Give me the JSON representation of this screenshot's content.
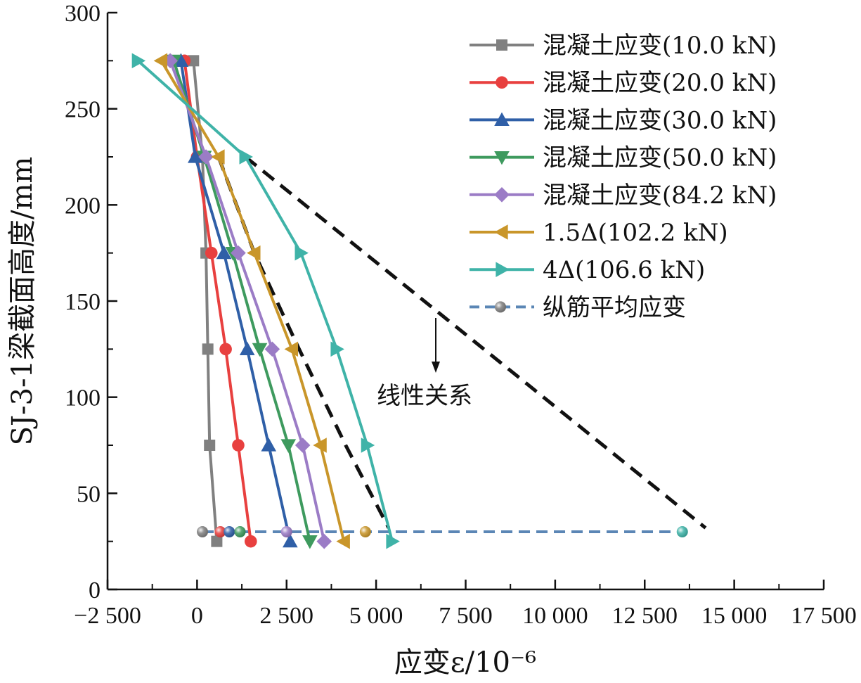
{
  "chart_data": {
    "type": "line",
    "orientation": "strain_x_height_y",
    "xlabel": "应变ε/10⁻⁶",
    "ylabel": "SJ-3-1梁截面高度/mm",
    "xlim": [
      -2500,
      17500
    ],
    "ylim": [
      0,
      300
    ],
    "x_ticks": [
      -2500,
      0,
      2500,
      5000,
      7500,
      10000,
      12500,
      15000,
      17500
    ],
    "x_tick_labels": [
      "−2 500",
      "0",
      "2 500",
      "5 000",
      "7 500",
      "10 000",
      "12 500",
      "15 000",
      "17 500"
    ],
    "y_ticks": [
      0,
      50,
      100,
      150,
      200,
      250,
      300
    ],
    "y_tick_labels": [
      "0",
      "50",
      "100",
      "150",
      "200",
      "250",
      "300"
    ],
    "legend_position": "top-right",
    "series": [
      {
        "name": "混凝土应变(10.0 kN)",
        "color": "#808080",
        "marker": "square",
        "x": [
          -100,
          150,
          250,
          300,
          350,
          550
        ],
        "y": [
          275,
          225,
          175,
          125,
          75,
          25
        ]
      },
      {
        "name": "混凝土应变(20.0 kN)",
        "color": "#e8403f",
        "marker": "circle",
        "x": [
          -350,
          0,
          400,
          800,
          1150,
          1500
        ],
        "y": [
          275,
          225,
          175,
          125,
          75,
          25
        ]
      },
      {
        "name": "混凝土应变(30.0 kN)",
        "color": "#2f5fa7",
        "marker": "triangle-up",
        "x": [
          -450,
          -50,
          750,
          1400,
          2000,
          2600
        ],
        "y": [
          275,
          225,
          175,
          125,
          75,
          25
        ]
      },
      {
        "name": "混凝土应变(50.0 kN)",
        "color": "#3e9a5e",
        "marker": "triangle-down",
        "x": [
          -650,
          200,
          1000,
          1750,
          2550,
          3150
        ],
        "y": [
          275,
          225,
          175,
          125,
          75,
          25
        ]
      },
      {
        "name": "混凝土应变(84.2 kN)",
        "color": "#9b7cc6",
        "marker": "diamond",
        "x": [
          -750,
          250,
          1150,
          2100,
          2950,
          3550
        ],
        "y": [
          275,
          225,
          175,
          125,
          75,
          25
        ]
      },
      {
        "name": "1.5Δ(102.2 kN)",
        "color": "#c9962a",
        "marker": "triangle-left",
        "x": [
          -1000,
          600,
          1600,
          2650,
          3450,
          4100
        ],
        "y": [
          275,
          225,
          175,
          125,
          75,
          25
        ]
      },
      {
        "name": "4Δ(106.6 kN)",
        "color": "#3fb3a8",
        "marker": "triangle-right",
        "x": [
          -1650,
          1350,
          2900,
          3900,
          4750,
          5450
        ],
        "y": [
          275,
          225,
          175,
          125,
          75,
          25
        ]
      }
    ],
    "rebar_series": {
      "name": "纵筋平均应变",
      "line_color": "#5b86b5",
      "y": 30,
      "points": [
        {
          "x": 150,
          "color": "#808080"
        },
        {
          "x": 650,
          "color": "#e8403f"
        },
        {
          "x": 900,
          "color": "#2f5fa7"
        },
        {
          "x": 1200,
          "color": "#3e9a5e"
        },
        {
          "x": 2500,
          "color": "#9b7cc6"
        },
        {
          "x": 4700,
          "color": "#c9962a"
        },
        {
          "x": 13550,
          "color": "#3fb3a8"
        }
      ]
    },
    "reference_lines": [
      {
        "x": [
          600,
          1600,
          2850,
          4150,
          5350
        ],
        "y": [
          225,
          175,
          125,
          75,
          32
        ],
        "style": "dashed",
        "color": "#111111"
      },
      {
        "x": [
          1350,
          14200
        ],
        "y": [
          225,
          32
        ],
        "style": "dashed",
        "color": "#111111"
      }
    ],
    "annotation": {
      "text": "线性关系"
    }
  }
}
